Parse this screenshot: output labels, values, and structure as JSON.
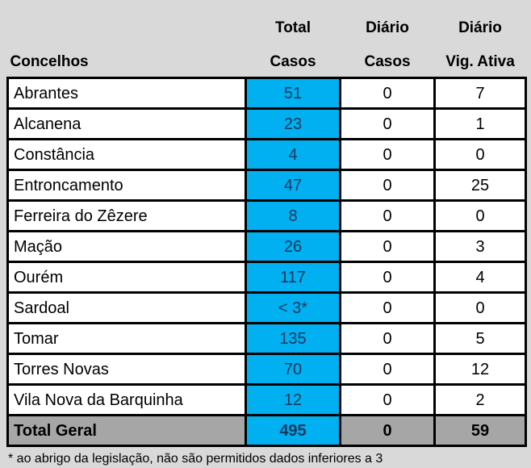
{
  "chart_data": {
    "type": "table",
    "header": {
      "concelhos": "Concelhos",
      "total_casos_line1": "Total",
      "total_casos_line2": "Casos",
      "diario_casos_line1": "Diário",
      "diario_casos_line2": "Casos",
      "diario_vig_line1": "Diário",
      "diario_vig_line2": "Vig. Ativa"
    },
    "rows": [
      {
        "concelho": "Abrantes",
        "total_casos": "51",
        "diario_casos": "0",
        "diario_vig_ativa": "7"
      },
      {
        "concelho": "Alcanena",
        "total_casos": "23",
        "diario_casos": "0",
        "diario_vig_ativa": "1"
      },
      {
        "concelho": "Constância",
        "total_casos": "4",
        "diario_casos": "0",
        "diario_vig_ativa": "0"
      },
      {
        "concelho": "Entroncamento",
        "total_casos": "47",
        "diario_casos": "0",
        "diario_vig_ativa": "25"
      },
      {
        "concelho": "Ferreira do Zêzere",
        "total_casos": "8",
        "diario_casos": "0",
        "diario_vig_ativa": "0"
      },
      {
        "concelho": "Mação",
        "total_casos": "26",
        "diario_casos": "0",
        "diario_vig_ativa": "3"
      },
      {
        "concelho": "Ourém",
        "total_casos": "117",
        "diario_casos": "0",
        "diario_vig_ativa": "4"
      },
      {
        "concelho": "Sardoal",
        "total_casos": "< 3*",
        "diario_casos": "0",
        "diario_vig_ativa": "0"
      },
      {
        "concelho": "Tomar",
        "total_casos": "135",
        "diario_casos": "0",
        "diario_vig_ativa": "5"
      },
      {
        "concelho": "Torres Novas",
        "total_casos": "70",
        "diario_casos": "0",
        "diario_vig_ativa": "12"
      },
      {
        "concelho": "Vila Nova da Barquinha",
        "total_casos": "12",
        "diario_casos": "0",
        "diario_vig_ativa": "2"
      }
    ],
    "total_row": {
      "concelho": "Total Geral",
      "total_casos": "495",
      "diario_casos": "0",
      "diario_vig_ativa": "59"
    },
    "footnote": "* ao abrigo da legislação, não são permitidos dados inferiores a 3"
  },
  "colors": {
    "page_background": "#d9d9d9",
    "cell_background": "#ffffff",
    "highlight_blue": "#00b0f0",
    "total_row_gray": "#a6a6a6",
    "border_black": "#000000",
    "blue_cell_text_navy": "#17375e"
  }
}
